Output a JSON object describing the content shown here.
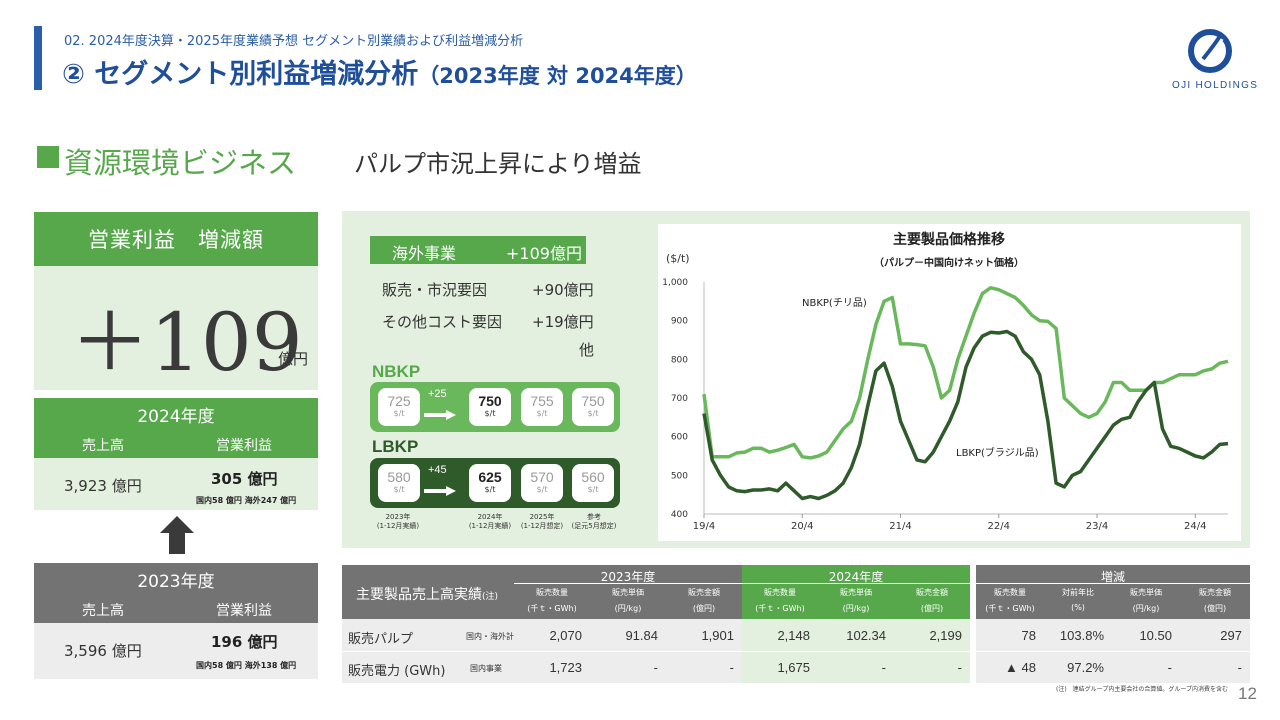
{
  "header": {
    "subtitle": "02. 2024年度決算・2025年度業績予想 セグメント別業績および利益増減分析",
    "title": "② セグメント別利益増減分析",
    "title_paren": "（2023年度 対 2024年度）",
    "logo_text": "OJI HOLDINGS",
    "colors": {
      "primary": "#2a5ea6",
      "accent_green": "#56a84b"
    }
  },
  "section": {
    "title": "資源環境ビジネス",
    "subtitle": "パルプ市況上昇により増益"
  },
  "kpi": {
    "label": "営業利益　増減額",
    "value": "＋109",
    "unit": "億円"
  },
  "fy2024": {
    "label": "2024年度",
    "sales_label": "売上高",
    "op_label": "営業利益",
    "sales": "3,923 億円",
    "op": "305 億円",
    "op_note": "国内58 億円 海外247 億円"
  },
  "fy2023": {
    "label": "2023年度",
    "sales_label": "売上高",
    "op_label": "営業利益",
    "sales": "3,596 億円",
    "op": "196 億円",
    "op_note": "国内58 億円 海外138 億円"
  },
  "overseas": {
    "label": "海外事業",
    "value": "+109億円",
    "factors": [
      {
        "label": "販売・市況要因",
        "value": "+90億円"
      },
      {
        "label": "その他コスト要因",
        "value": "+19億円"
      }
    ],
    "other": "他"
  },
  "price_lines": [
    {
      "name": "NBKP",
      "delta": "+25",
      "prices": [
        "725",
        "750",
        "755",
        "750"
      ],
      "unit": "$/t"
    },
    {
      "name": "LBKP",
      "delta": "+45",
      "prices": [
        "580",
        "625",
        "570",
        "560"
      ],
      "unit": "$/t"
    }
  ],
  "price_cols": [
    [
      "2023年",
      "(1-12月実績)"
    ],
    [
      "2024年",
      "(1-12月実績)"
    ],
    [
      "2025年",
      "(1-12月想定)"
    ],
    [
      "参考",
      "(足元5月想定)"
    ]
  ],
  "chart_data": {
    "type": "line",
    "title": "主要製品価格推移",
    "subtitle": "（パルプ－中国向けネット価格）",
    "ylabel": "($/t)",
    "ylim": [
      400,
      1000
    ],
    "yticks": [
      "400",
      "500",
      "600",
      "700",
      "800",
      "900",
      "1,000"
    ],
    "x_tick_labels": [
      "19/4",
      "20/4",
      "21/4",
      "22/4",
      "23/4",
      "24/4"
    ],
    "x_range_months": [
      "2019-04",
      "2025-04"
    ],
    "grid": false,
    "series": [
      {
        "name": "NBKP(チリ品)",
        "color": "#6ab85c",
        "values": [
          710,
          548,
          548,
          548,
          558,
          560,
          570,
          570,
          560,
          565,
          572,
          580,
          548,
          545,
          550,
          560,
          590,
          620,
          640,
          700,
          800,
          890,
          950,
          960,
          840,
          840,
          838,
          835,
          780,
          700,
          720,
          800,
          860,
          920,
          970,
          985,
          980,
          970,
          960,
          940,
          915,
          900,
          898,
          880,
          700,
          680,
          660,
          650,
          660,
          690,
          740,
          740,
          720,
          720,
          720,
          740,
          740,
          750,
          760,
          760,
          760,
          770,
          775,
          790,
          795
        ]
      },
      {
        "name": "LBKP(ブラジル品)",
        "color": "#2f5a2a",
        "values": [
          660,
          540,
          500,
          470,
          460,
          458,
          462,
          462,
          465,
          460,
          480,
          460,
          440,
          445,
          440,
          448,
          460,
          480,
          520,
          580,
          680,
          770,
          790,
          730,
          640,
          590,
          540,
          535,
          560,
          600,
          640,
          690,
          780,
          830,
          860,
          870,
          868,
          872,
          860,
          820,
          800,
          760,
          640,
          480,
          470,
          500,
          510,
          540,
          570,
          600,
          630,
          645,
          650,
          690,
          720,
          740,
          620,
          575,
          570,
          560,
          550,
          545,
          560,
          580,
          582
        ]
      }
    ]
  },
  "table": {
    "title": "主要製品売上高実績",
    "title_note": "(注)",
    "groups": [
      {
        "label": "2023年度",
        "color": "#737373"
      },
      {
        "label": "2024年度",
        "color": "#56a84b"
      },
      {
        "label": "増減",
        "color": "#737373"
      }
    ],
    "sub_headers": [
      [
        "販売数量",
        "(千ｔ・GWh)"
      ],
      [
        "販売単価",
        "(円/kg)"
      ],
      [
        "販売金額",
        "(億円)"
      ],
      [
        "販売数量",
        "(千ｔ・GWh)"
      ],
      [
        "販売単価",
        "(円/kg)"
      ],
      [
        "販売金額",
        "(億円)"
      ],
      [
        "販売数量",
        "(千ｔ・GWh)"
      ],
      [
        "対前年比",
        "(%)"
      ],
      [
        "販売単価",
        "(円/kg)"
      ],
      [
        "販売金額",
        "(億円)"
      ]
    ],
    "rows": [
      {
        "name": "販売パルプ",
        "sub": "国内・海外計",
        "cells": [
          "2,070",
          "91.84",
          "1,901",
          "2,148",
          "102.34",
          "2,199",
          "78",
          "103.8%",
          "10.50",
          "297"
        ]
      },
      {
        "name": "販売電力 (GWh)",
        "sub": "国内事業",
        "cells": [
          "1,723",
          "-",
          "-",
          "1,675",
          "-",
          "-",
          "▲ 48",
          "97.2%",
          "-",
          "-"
        ]
      }
    ]
  },
  "footnote": "(注)　連結グループ内主要会社の合算値。グループ内消費を含む",
  "page_number": "12"
}
